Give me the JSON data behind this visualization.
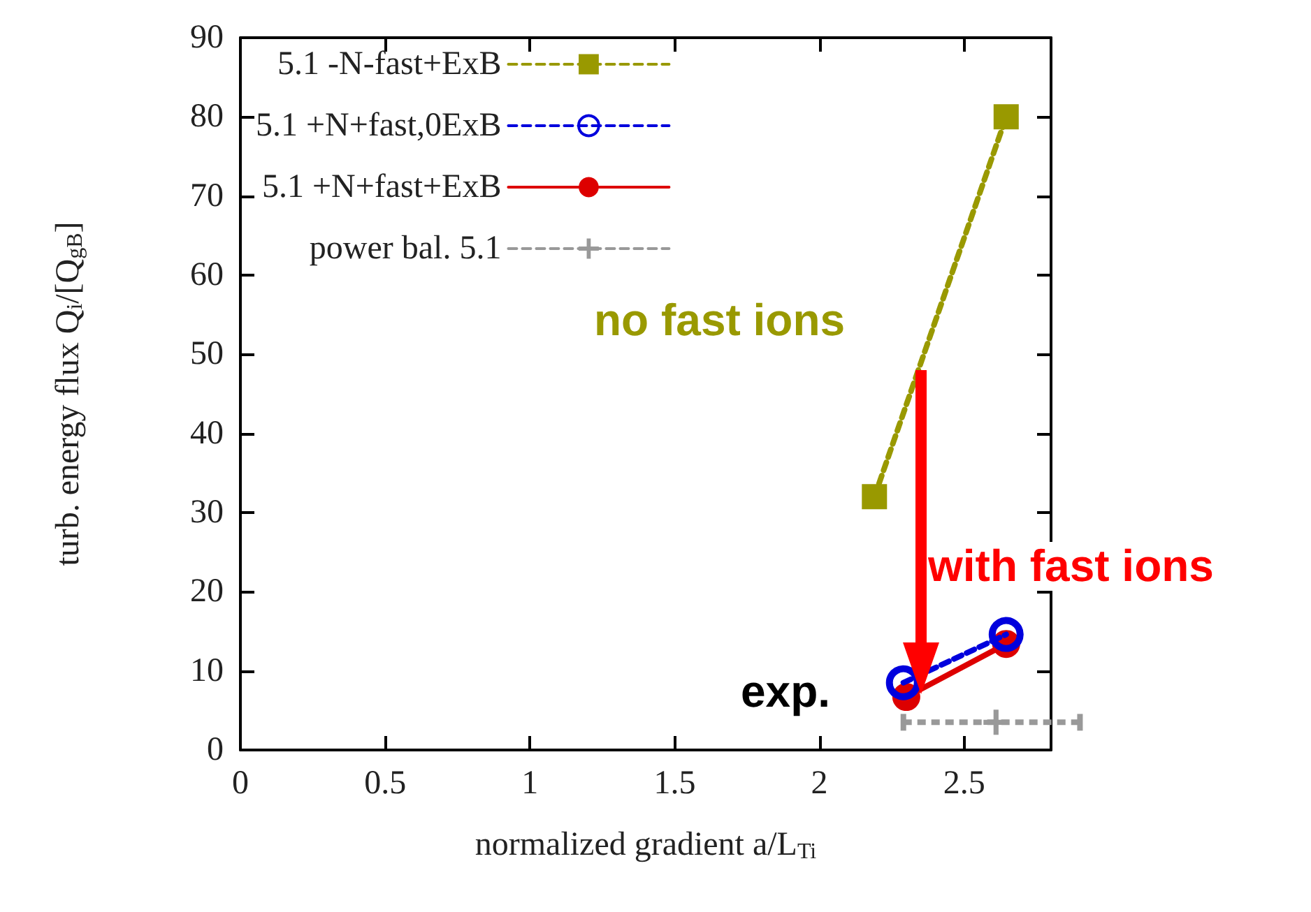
{
  "chart_data": {
    "type": "line",
    "xlabel": "normalized gradient a/L$_{Ti}$",
    "ylabel": "turb. energy flux Q$_{i}$/[Q$_{gB}$]",
    "xlim": [
      0,
      2.8
    ],
    "xticks": [
      0,
      0.5,
      1,
      1.5,
      2,
      2.5
    ],
    "ylim": [
      0,
      90
    ],
    "yticks": [
      0,
      10,
      20,
      30,
      40,
      50,
      60,
      70,
      80,
      90
    ],
    "legend": "top left",
    "grid": false,
    "series": [
      {
        "name": "5.1 -N-fast+ExB",
        "color": "#999900",
        "x": [
          2.19,
          2.645
        ],
        "values": [
          32,
          80
        ],
        "marker": "square",
        "line_style": "dashed"
      },
      {
        "name": "5.1 +N+fast,0ExB",
        "color": "#0000dd",
        "x": [
          2.29,
          2.645
        ],
        "values": [
          8.5,
          14.6
        ],
        "marker": "circle",
        "line_style": "dashed"
      },
      {
        "name": "5.1 +N+fast+ExB",
        "color": "#dd0000",
        "x": [
          2.3,
          2.645
        ],
        "values": [
          6.7,
          13.4
        ],
        "marker": "circle",
        "line_style": "solid"
      },
      {
        "name": "power bal. 5.1",
        "color": "#999999",
        "x": [
          2.61
        ],
        "values": [
          3.5
        ],
        "xerrors": [
          [
            2.29,
            2.9
          ]
        ],
        "marker": "cross",
        "line_style": "dashed"
      }
    ],
    "annotations": [
      "no fast ions",
      "with fast ions",
      "exp."
    ]
  }
}
